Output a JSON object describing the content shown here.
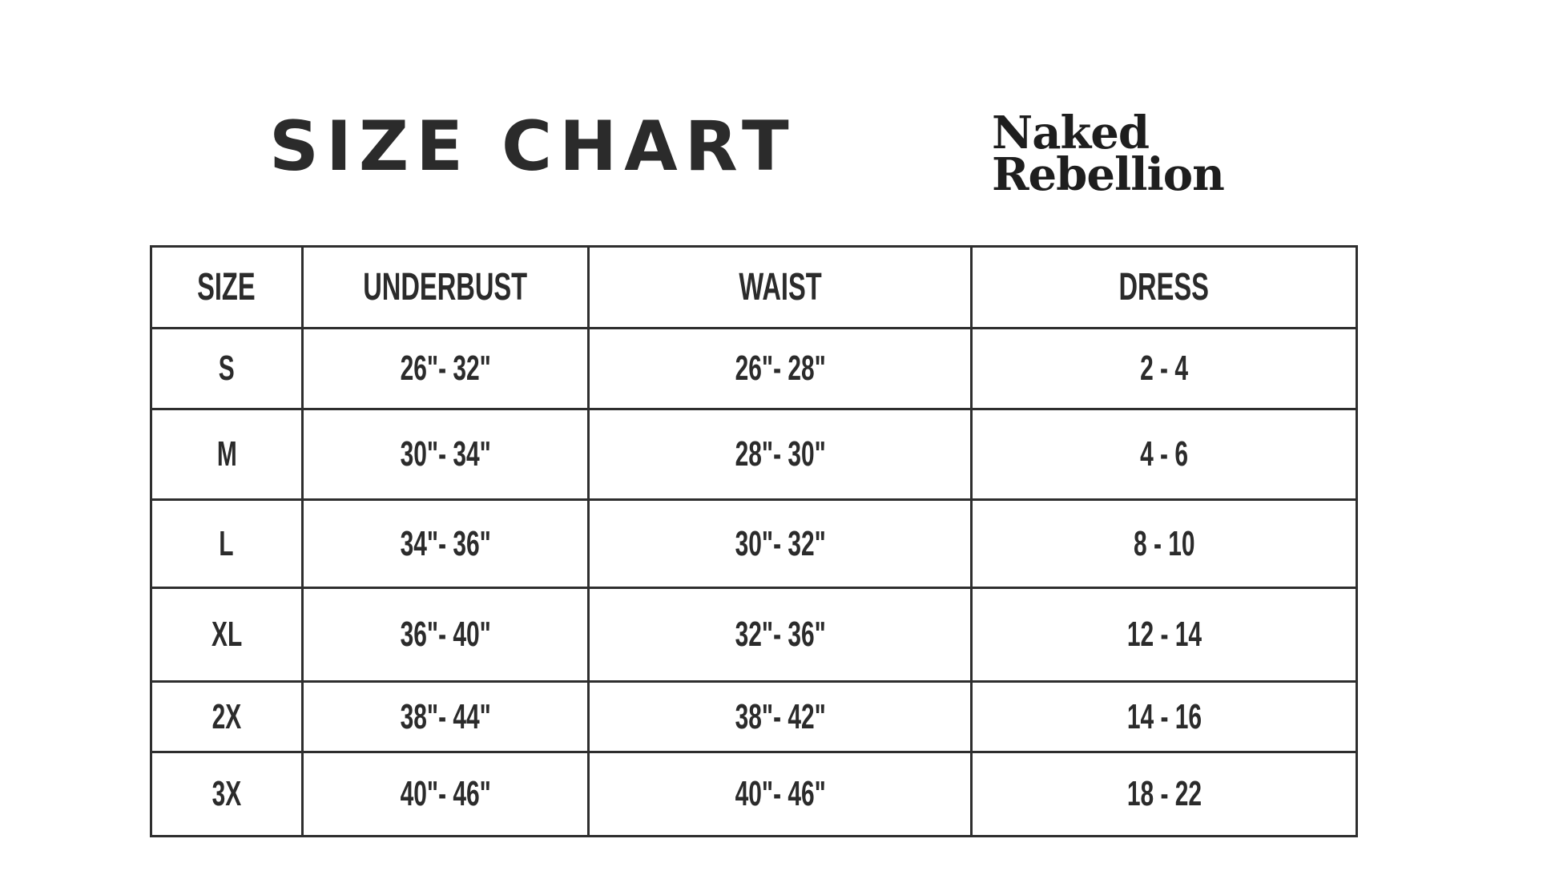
{
  "title": "SIZE CHART",
  "logo": {
    "line1": "Naked",
    "line2": "Rebellion"
  },
  "table": {
    "headers": [
      "SIZE",
      "UNDERBUST",
      "WAIST",
      "DRESS"
    ],
    "rows": [
      [
        "S",
        "26\"- 32\"",
        "26\"- 28\"",
        "2 - 4"
      ],
      [
        "M",
        "30\"- 34\"",
        "28\"- 30\"",
        "4 - 6"
      ],
      [
        "L",
        "34\"- 36\"",
        "30\"- 32\"",
        "8 - 10"
      ],
      [
        "XL",
        "36\"- 40\"",
        "32\"- 36\"",
        "12 - 14"
      ],
      [
        "2X",
        "38\"- 44\"",
        "38\"- 42\"",
        "14 - 16"
      ],
      [
        "3X",
        "40\"- 46\"",
        "40\"- 46\"",
        "18 - 22"
      ]
    ]
  }
}
